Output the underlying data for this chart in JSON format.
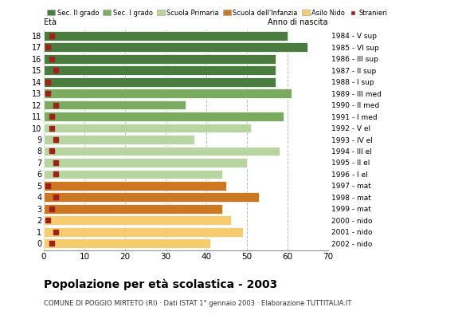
{
  "ages": [
    18,
    17,
    16,
    15,
    14,
    13,
    12,
    11,
    10,
    9,
    8,
    7,
    6,
    5,
    4,
    3,
    2,
    1,
    0
  ],
  "bar_values": [
    60,
    65,
    57,
    57,
    57,
    61,
    35,
    59,
    51,
    37,
    58,
    50,
    44,
    45,
    53,
    44,
    46,
    49,
    41
  ],
  "stranieri": [
    2,
    1,
    2,
    3,
    1,
    1,
    3,
    2,
    2,
    3,
    2,
    3,
    3,
    1,
    3,
    2,
    1,
    3,
    2
  ],
  "bar_colors": [
    "#4a7c3f",
    "#4a7c3f",
    "#4a7c3f",
    "#4a7c3f",
    "#4a7c3f",
    "#7aab5e",
    "#7aab5e",
    "#7aab5e",
    "#b8d4a0",
    "#b8d4a0",
    "#b8d4a0",
    "#b8d4a0",
    "#b8d4a0",
    "#cc7722",
    "#cc7722",
    "#cc7722",
    "#f5cc70",
    "#f5cc70",
    "#f5cc70"
  ],
  "anno_labels": [
    "1984 - V sup",
    "1985 - VI sup",
    "1986 - III sup",
    "1987 - II sup",
    "1988 - I sup",
    "1989 - III med",
    "1990 - II med",
    "1991 - I med",
    "1992 - V el",
    "1993 - IV el",
    "1994 - III el",
    "1995 - II el",
    "1996 - I el",
    "1997 - mat",
    "1998 - mat",
    "1999 - mat",
    "2000 - nido",
    "2001 - nido",
    "2002 - nido"
  ],
  "legend_labels": [
    "Sec. II grado",
    "Sec. I grado",
    "Scuola Primaria",
    "Scuola dell'Infanzia",
    "Asilo Nido",
    "Stranieri"
  ],
  "legend_colors": [
    "#4a7c3f",
    "#7aab5e",
    "#b8d4a0",
    "#cc7722",
    "#f5cc70",
    "#a0201a"
  ],
  "title": "Popolazione per età scolastica - 2003",
  "subtitle": "COMUNE DI POGGIO MIRTETO (RI) · Dati ISTAT 1° gennaio 2003 · Elaborazione TUTTITALIA.IT",
  "label_eta": "Età",
  "label_anno": "Anno di nascita",
  "xlim": [
    0,
    70
  ],
  "xticks": [
    0,
    10,
    20,
    30,
    40,
    50,
    60,
    70
  ],
  "stranieri_color": "#a0201a",
  "stranieri_size": 4,
  "bar_height": 0.82,
  "grid_color": "#bbbbbb",
  "bg_color": "#ffffff"
}
